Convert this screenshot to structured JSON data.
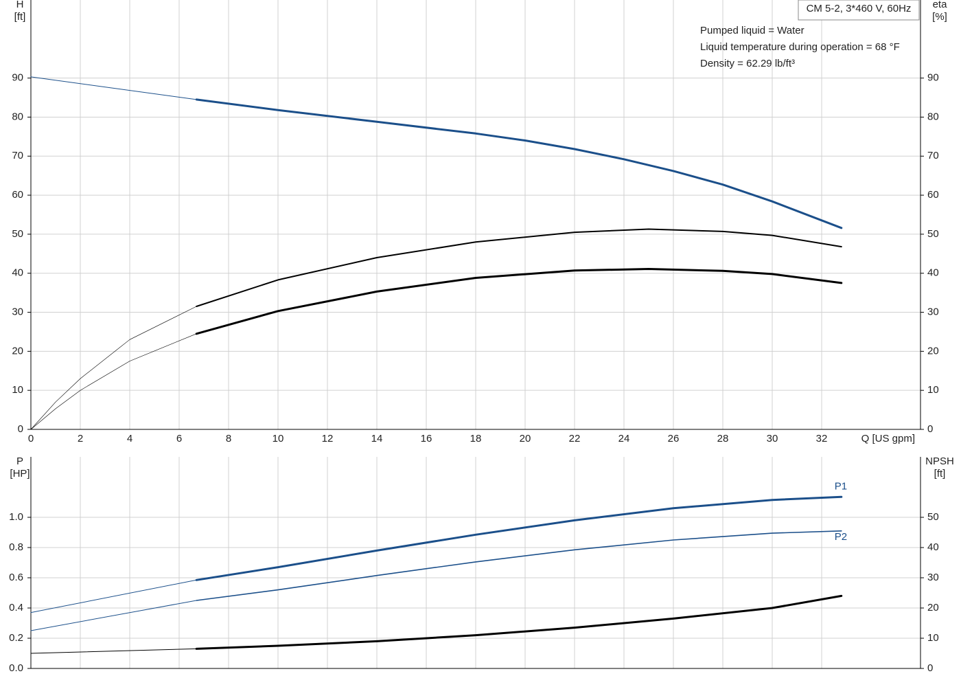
{
  "chart_data": [
    {
      "type": "line",
      "xlim": [
        0,
        36
      ],
      "xticks": [
        0,
        2,
        4,
        6,
        8,
        10,
        12,
        14,
        16,
        18,
        20,
        22,
        24,
        26,
        28,
        30,
        32
      ],
      "xlabel": "Q [US gpm]",
      "ylabel": [
        "H",
        "[ft]"
      ],
      "ylim": [
        0,
        110
      ],
      "yticks": [
        0,
        10,
        20,
        30,
        40,
        50,
        60,
        70,
        80,
        90
      ],
      "y2label": [
        "eta",
        "[%]"
      ],
      "y2lim": [
        0,
        110
      ],
      "y2ticks": [
        0,
        10,
        20,
        30,
        40,
        50,
        60,
        70,
        80,
        90
      ],
      "grid": true,
      "legend_box": "CM 5-2, 3*460 V, 60Hz",
      "annotations": [
        "Pumped liquid = Water",
        "Liquid temperature during operation = 68 °F",
        "Density = 62.29 lb/ft³"
      ],
      "series": [
        {
          "color": "#1b4f8a",
          "width": 1,
          "x": [
            0,
            6.7
          ],
          "values": [
            90.3,
            84.5
          ]
        },
        {
          "color": "#1b4f8a",
          "width": 3,
          "x": [
            6.7,
            10,
            14,
            18,
            20,
            22,
            24,
            26,
            28,
            30,
            32.8
          ],
          "values": [
            84.5,
            81.8,
            78.8,
            75.8,
            74,
            71.8,
            69.2,
            66.2,
            62.7,
            58.4,
            51.6
          ]
        },
        {
          "color": "#000000",
          "width": 0.6,
          "axis": "y2",
          "x": [
            0,
            1,
            2,
            4,
            6.7
          ],
          "values": [
            0,
            7,
            13,
            23,
            31.5
          ]
        },
        {
          "color": "#000000",
          "width": 2,
          "axis": "y2",
          "x": [
            6.7,
            10,
            14,
            18,
            22,
            25,
            28,
            30,
            32.8
          ],
          "values": [
            31.5,
            38.3,
            44,
            48,
            50.5,
            51.3,
            50.7,
            49.7,
            46.8
          ]
        },
        {
          "color": "#000000",
          "width": 0.6,
          "axis": "y2",
          "x": [
            0,
            1,
            2,
            4,
            6.7
          ],
          "values": [
            0,
            5.3,
            10,
            17.5,
            24.5
          ]
        },
        {
          "color": "#000000",
          "width": 3,
          "axis": "y2",
          "x": [
            6.7,
            10,
            14,
            18,
            22,
            25,
            28,
            30,
            32.8
          ],
          "values": [
            24.5,
            30.3,
            35.3,
            38.8,
            40.7,
            41.1,
            40.6,
            39.8,
            37.5
          ]
        }
      ]
    },
    {
      "type": "line",
      "xlim": [
        0,
        36
      ],
      "ylabel": [
        "P",
        "[HP]"
      ],
      "ylim": [
        0,
        1.4
      ],
      "yticks": [
        {
          "value": 0,
          "label": "0.0"
        },
        0.2,
        0.4,
        0.6,
        0.8,
        {
          "value": 1,
          "label": "1.0"
        }
      ],
      "y2label": [
        "NPSH",
        "[ft]"
      ],
      "y2lim": [
        0,
        70
      ],
      "y2ticks": [
        0,
        10,
        20,
        30,
        40,
        50
      ],
      "grid": true,
      "series": [
        {
          "color": "#1b4f8a",
          "width": 1,
          "x": [
            0,
            6.7
          ],
          "values": [
            0.37,
            0.585
          ]
        },
        {
          "name": "P1",
          "color": "#1b4f8a",
          "width": 3,
          "x": [
            6.7,
            10,
            14,
            18,
            22,
            26,
            30,
            32.8
          ],
          "values": [
            0.585,
            0.67,
            0.78,
            0.885,
            0.98,
            1.06,
            1.115,
            1.135
          ]
        },
        {
          "color": "#1b4f8a",
          "width": 1,
          "x": [
            0,
            6.7
          ],
          "values": [
            0.25,
            0.45
          ]
        },
        {
          "name": "P2",
          "color": "#1b4f8a",
          "width": 1.6,
          "x": [
            6.7,
            10,
            14,
            18,
            22,
            26,
            30,
            32.8
          ],
          "values": [
            0.45,
            0.52,
            0.615,
            0.705,
            0.785,
            0.85,
            0.895,
            0.91
          ]
        },
        {
          "color": "#000000",
          "width": 1,
          "axis": "y2",
          "x": [
            0,
            6.7
          ],
          "values": [
            5,
            6.5
          ]
        },
        {
          "color": "#000000",
          "width": 3,
          "axis": "y2",
          "x": [
            6.7,
            10,
            14,
            18,
            22,
            26,
            30,
            32.8
          ],
          "values": [
            6.5,
            7.5,
            9,
            11,
            13.5,
            16.5,
            20,
            24
          ]
        }
      ]
    }
  ]
}
